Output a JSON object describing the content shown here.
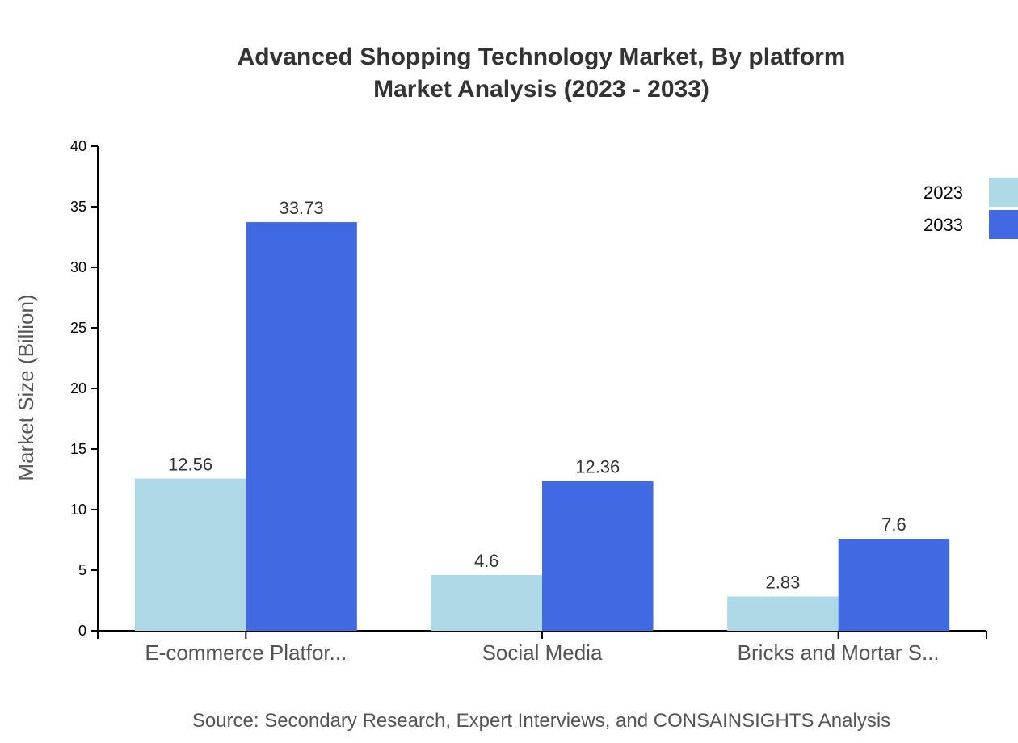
{
  "chart_data": {
    "type": "bar",
    "title": "Advanced Shopping Technology Market, By platform",
    "subtitle": "Market Analysis (2023 - 2033)",
    "ylabel": "Market Size (Billion)",
    "xlabel": "",
    "categories": [
      "E-commerce Platfor...",
      "Social Media",
      "Bricks and Mortar S..."
    ],
    "series": [
      {
        "name": "2023",
        "values": [
          12.56,
          4.6,
          2.83
        ],
        "color": "#add8e6"
      },
      {
        "name": "2033",
        "values": [
          33.73,
          12.36,
          7.6
        ],
        "color": "#4169e1"
      }
    ],
    "ylim": [
      0,
      40
    ],
    "yticks": [
      0,
      5,
      10,
      15,
      20,
      25,
      30,
      35,
      40
    ],
    "grid": false,
    "legend": "top-right",
    "source": "Source: Secondary Research, Expert Interviews, and CONSAINSIGHTS Analysis"
  }
}
